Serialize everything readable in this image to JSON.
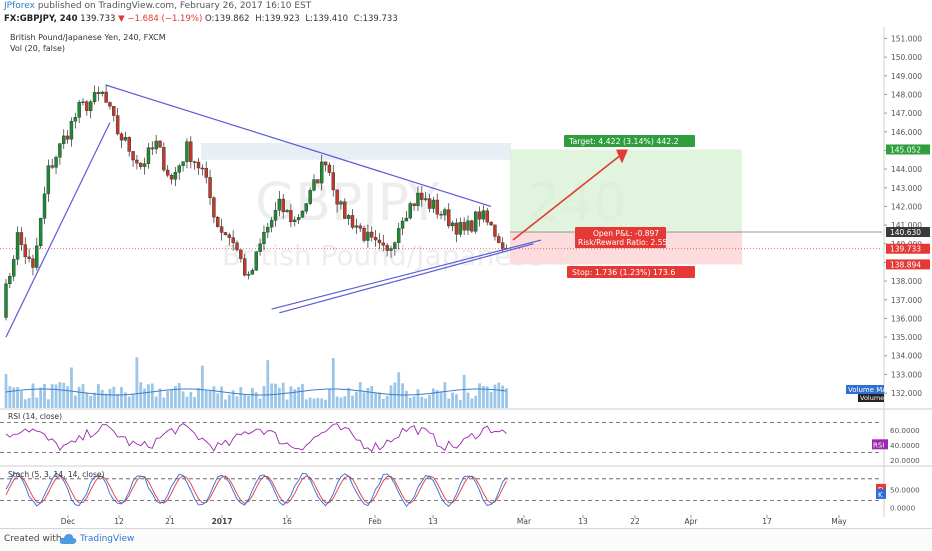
{
  "header": {
    "publisher": "JPforex",
    "published_text": "published on TradingView.com, February 26, 2017 16:10 EST",
    "symbol_line": "FX:GBPJPY, 240",
    "last": "139.733",
    "change": "−1.684 (−1.19%)",
    "ohlc": [
      "O:139.862",
      "H:139.923",
      "L:139.410",
      "C:139.733"
    ]
  },
  "legend": {
    "instrument": "British Pound/Japanese Yen, 240, FXCM",
    "volume": "Vol (20, false)",
    "volume_ma": "Volume MA",
    "volume_tag": "Volume",
    "rsi_label": "RSI (14, close)",
    "rsi_tag": "RSI",
    "stoch_label": "Stoch (5, 3, 14, 14, close)",
    "stoch_tags": [
      "D",
      "K"
    ]
  },
  "watermark": {
    "symbol": "GBPJPY",
    "interval": "240",
    "name": "British Pound/Japanese Yen"
  },
  "footer": {
    "made_with": "Created with",
    "brand": "TradingView"
  },
  "colors": {
    "up": "#1f8a34",
    "down": "#c0392b",
    "trendline": "#5b5bd6",
    "rsi": "#9c27b0",
    "stoch_k": "#2d6be0",
    "stoch_d": "#e53935",
    "target": "#2e9e3e",
    "stop": "#e53935",
    "volume": "#7ab3e0",
    "zone": "#dfe5f0"
  },
  "chart_data": {
    "type": "candlestick",
    "price_axis": {
      "ticks": [
        132,
        133,
        134,
        135,
        136,
        137,
        138,
        139,
        140,
        141,
        142,
        143,
        144,
        145,
        146,
        147,
        148,
        149,
        150,
        151
      ],
      "tick_labels": [
        "132.000",
        "133.000",
        "134.000",
        "135.000",
        "136.000",
        "137.000",
        "138.000",
        "139.000",
        "140.000",
        "141.000",
        "142.000",
        "143.000",
        "144.000",
        "145.000",
        "146.000",
        "147.000",
        "148.000",
        "149.000",
        "150.000",
        "151.000"
      ],
      "ylim": [
        131.2,
        151.4
      ]
    },
    "time_axis": {
      "labels": [
        "Dec",
        "12",
        "21",
        "2017",
        "16",
        "Feb",
        "13",
        "Mar",
        "13",
        "22",
        "Apr",
        "17",
        "May"
      ]
    },
    "price_tags": {
      "target": "145.052",
      "entry": "140.630",
      "last": "139.733",
      "stop": "138.894"
    },
    "anchors": [
      {
        "t": 0,
        "price": 136.5
      },
      {
        "t": 4,
        "price": 140.4
      },
      {
        "t": 8,
        "price": 138.5
      },
      {
        "t": 12,
        "price": 143.9
      },
      {
        "t": 16,
        "price": 145.6
      },
      {
        "t": 20,
        "price": 147.2
      },
      {
        "t": 26,
        "price": 148.0
      },
      {
        "t": 30,
        "price": 146.0
      },
      {
        "t": 36,
        "price": 144.2
      },
      {
        "t": 40,
        "price": 145.3
      },
      {
        "t": 44,
        "price": 143.4
      },
      {
        "t": 48,
        "price": 145.1
      },
      {
        "t": 52,
        "price": 143.9
      },
      {
        "t": 56,
        "price": 141.0
      },
      {
        "t": 60,
        "price": 140.2
      },
      {
        "t": 64,
        "price": 138.0
      },
      {
        "t": 68,
        "price": 140.5
      },
      {
        "t": 72,
        "price": 142.0
      },
      {
        "t": 76,
        "price": 141.2
      },
      {
        "t": 80,
        "price": 142.6
      },
      {
        "t": 84,
        "price": 144.6
      },
      {
        "t": 88,
        "price": 141.8
      },
      {
        "t": 92,
        "price": 141.0
      },
      {
        "t": 96,
        "price": 140.0
      },
      {
        "t": 100,
        "price": 139.4
      },
      {
        "t": 104,
        "price": 141.6
      },
      {
        "t": 108,
        "price": 142.5
      },
      {
        "t": 112,
        "price": 142.0
      },
      {
        "t": 116,
        "price": 141.3
      },
      {
        "t": 120,
        "price": 140.6
      },
      {
        "t": 124,
        "price": 141.6
      },
      {
        "t": 128,
        "price": 140.6
      },
      {
        "t": 131,
        "price": 139.73
      }
    ],
    "trendlines": [
      {
        "name": "upper-descending",
        "from": {
          "t": 26,
          "price": 148.5
        },
        "to": {
          "t": 126,
          "price": 142.0
        }
      },
      {
        "name": "lower-ascending",
        "from": {
          "t": 69,
          "price": 136.5
        },
        "to": {
          "t": 139,
          "price": 140.2
        }
      },
      {
        "name": "lower-ascending-2",
        "from": {
          "t": 71,
          "price": 136.3
        },
        "to": {
          "t": 137,
          "price": 140.0
        }
      },
      {
        "name": "early-uptrend",
        "from": {
          "t": 0,
          "price": 135.0
        },
        "to": {
          "t": 27,
          "price": 146.5
        }
      }
    ],
    "resistance_zone": [
      144.5,
      145.4
    ],
    "position": {
      "entry": 140.63,
      "target": {
        "price": 145.052,
        "label": "Target: 4.422 (3.14%) 442.2"
      },
      "stop": {
        "price": 138.894,
        "label": "Stop: 1.736 (1.23%) 173.6"
      },
      "info": [
        "Open P&L: -0.897",
        "Risk/Reward Ratio: 2.55"
      ]
    },
    "rsi": {
      "levels": [
        70,
        30
      ],
      "tick_labels": [
        "60.0000",
        "40.0000",
        "20.0000"
      ],
      "ylim": [
        15,
        85
      ],
      "last_tag": "RSI"
    },
    "stoch": {
      "levels": [
        80,
        20
      ],
      "tick_labels": [
        "50.0000",
        "0.0000"
      ],
      "ylim": [
        -15,
        110
      ]
    }
  }
}
